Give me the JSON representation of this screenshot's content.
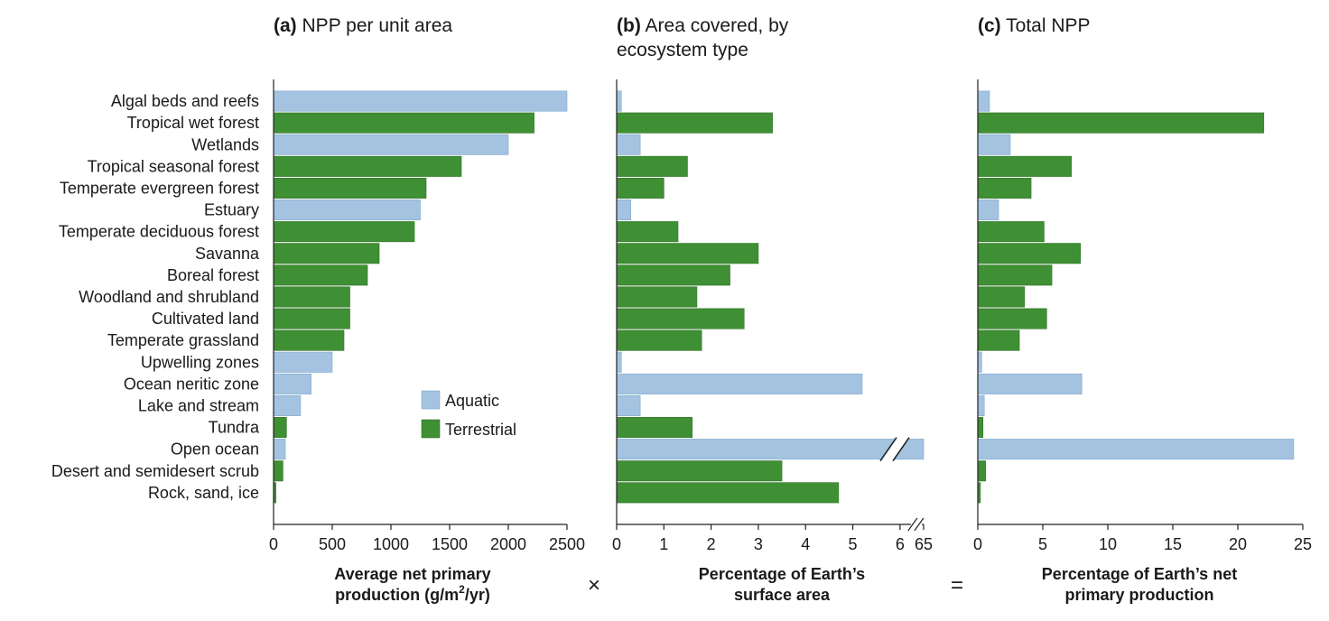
{
  "operators": {
    "times": "×",
    "equals": "="
  },
  "legend": [
    {
      "key": "aquatic",
      "label": "Aquatic",
      "color": "#a3c3e0"
    },
    {
      "key": "terrestrial",
      "label": "Terrestrial",
      "color": "#3f8f34"
    }
  ],
  "chart_data": [
    {
      "type": "bar",
      "orientation": "horizontal",
      "panel_letter": "(a)",
      "title": "NPP per unit area",
      "xlabel": [
        "Average net primary",
        "production (g/m²/yr)"
      ],
      "xlim": [
        0,
        2500
      ],
      "xticks": [
        "0",
        "500",
        "1000",
        "1500",
        "2000",
        "2500"
      ],
      "categories": [
        "Algal beds and reefs",
        "Tropical wet forest",
        "Wetlands",
        "Tropical seasonal forest",
        "Temperate evergreen forest",
        "Estuary",
        "Temperate deciduous forest",
        "Savanna",
        "Boreal forest",
        "Woodland and shrubland",
        "Cultivated land",
        "Temperate grassland",
        "Upwelling zones",
        "Ocean neritic zone",
        "Lake and stream",
        "Tundra",
        "Open ocean",
        "Desert and semidesert scrub",
        "Rock, sand, ice"
      ],
      "groups": [
        "aquatic",
        "terrestrial",
        "aquatic",
        "terrestrial",
        "terrestrial",
        "aquatic",
        "terrestrial",
        "terrestrial",
        "terrestrial",
        "terrestrial",
        "terrestrial",
        "terrestrial",
        "aquatic",
        "aquatic",
        "aquatic",
        "terrestrial",
        "aquatic",
        "terrestrial",
        "terrestrial"
      ],
      "values": [
        2500,
        2220,
        2000,
        1600,
        1300,
        1250,
        1200,
        900,
        800,
        650,
        650,
        600,
        500,
        320,
        230,
        110,
        100,
        80,
        20
      ]
    },
    {
      "type": "bar",
      "orientation": "horizontal",
      "panel_letter": "(b)",
      "title": [
        "Area covered, by",
        "ecosystem type"
      ],
      "xlabel": [
        "Percentage of Earth’s",
        "surface area"
      ],
      "xlim": [
        0,
        6.5
      ],
      "axis_break": {
        "after": 6,
        "resume": 65
      },
      "xticks": [
        "0",
        "1",
        "2",
        "3",
        "4",
        "5",
        "6",
        "65"
      ],
      "values": [
        0.1,
        3.3,
        0.5,
        1.5,
        1.0,
        0.3,
        1.3,
        3.0,
        2.4,
        1.7,
        2.7,
        1.8,
        0.1,
        5.2,
        0.5,
        1.6,
        65,
        3.5,
        4.7
      ]
    },
    {
      "type": "bar",
      "orientation": "horizontal",
      "panel_letter": "(c)",
      "title": "Total NPP",
      "xlabel": [
        "Percentage of Earth’s net",
        "primary production"
      ],
      "xlim": [
        0,
        25
      ],
      "xticks": [
        "0",
        "5",
        "10",
        "15",
        "20",
        "25"
      ],
      "values": [
        0.9,
        22,
        2.5,
        7.2,
        4.1,
        1.6,
        5.1,
        7.9,
        5.7,
        3.6,
        5.3,
        3.2,
        0.3,
        8,
        0.5,
        0.4,
        24.3,
        0.6,
        0.2
      ]
    }
  ]
}
